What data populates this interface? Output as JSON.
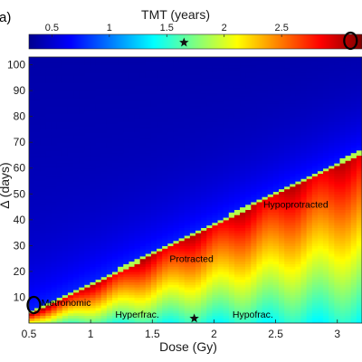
{
  "chart_data": {
    "type": "heatmap",
    "panel_label": "(a)",
    "xlabel": "Dose (Gy)",
    "ylabel": "Δ (days)",
    "xlim": [
      0.5,
      3.2
    ],
    "ylim": [
      0,
      103
    ],
    "x_ticks": [
      "0.5",
      "1",
      "1.5",
      "2",
      "2.5",
      "3"
    ],
    "y_ticks": [
      "10",
      "20",
      "30",
      "40",
      "50",
      "60",
      "70",
      "80",
      "90",
      "100"
    ],
    "colorbar": {
      "label": "TMT (years)",
      "range": [
        0.3,
        3.2
      ],
      "ticks": [
        "0.5",
        "1",
        "1.5",
        "2",
        "2.5"
      ],
      "colormap": "jet",
      "position": "top"
    },
    "boundary": {
      "x": [
        0.5,
        3.2
      ],
      "y": [
        3,
        66
      ]
    },
    "annotations": [
      {
        "text": "Metronomic",
        "x": 0.6,
        "y": 8
      },
      {
        "text": "Protracted",
        "x": 1.64,
        "y": 25
      },
      {
        "text": "Hypoprotracted",
        "x": 2.4,
        "y": 46
      },
      {
        "text": "Hyperfrac.",
        "x": 1.2,
        "y": 3.5
      },
      {
        "text": "Hypofrac.",
        "x": 2.15,
        "y": 3.5
      }
    ],
    "markers": [
      {
        "type": "star",
        "x": 1.84,
        "y": 2.5
      },
      {
        "type": "star",
        "x": 0.5,
        "y": 0.5,
        "on": "colorbar",
        "cb_value": 1.65
      },
      {
        "type": "circle",
        "x": 0.54,
        "y": 7
      },
      {
        "type": "circle",
        "x": 3.15,
        "y": 0,
        "on": "colorbar",
        "cb_value": 3.1
      }
    ]
  }
}
